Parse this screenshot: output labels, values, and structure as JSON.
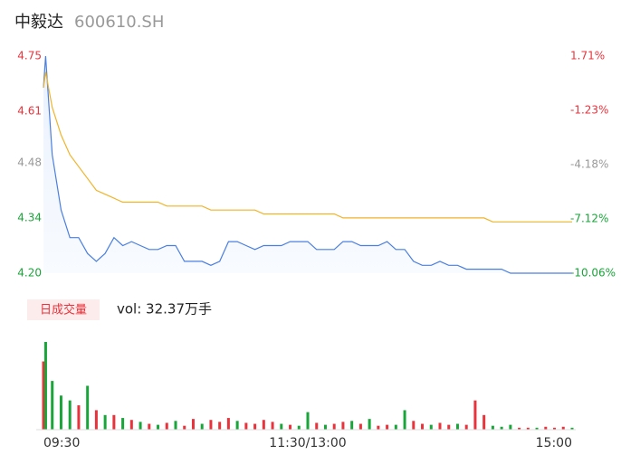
{
  "chart_data": {
    "type": "line",
    "title": "中毅达",
    "subtitle": "600610.SH",
    "x": [
      0,
      1,
      4,
      8,
      12,
      16,
      20,
      24,
      28,
      32,
      36,
      40,
      44,
      48,
      52,
      56,
      60,
      64,
      68,
      72,
      76,
      80,
      84,
      88,
      92,
      96,
      100,
      104,
      108,
      112,
      116,
      120,
      124,
      128,
      132,
      136,
      140,
      144,
      148,
      152,
      156,
      160,
      164,
      168,
      172,
      176,
      180,
      184,
      188,
      192,
      196,
      200,
      204,
      208,
      212,
      216,
      220,
      224,
      228,
      232,
      236,
      240
    ],
    "xlim": [
      0,
      240
    ],
    "xticks": [
      {
        "value": 0,
        "label": "09:30"
      },
      {
        "value": 120,
        "label": "11:30/13:00"
      },
      {
        "value": 240,
        "label": "15:00"
      }
    ],
    "ylim": [
      4.2,
      4.75
    ],
    "yticks": [
      4.75,
      4.61,
      4.48,
      4.34,
      {
        "value": 4.2,
        "label": "4.20"
      }
    ],
    "ytick_colors": [
      "#e8333c",
      "#e8333c",
      "#999999",
      "#1aa53a",
      "#1aa53a"
    ],
    "y2lim": [
      -10.06,
      1.71
    ],
    "y2ticks": [
      {
        "value": 1.71,
        "label": "1.71%"
      },
      {
        "value": -1.23,
        "label": "-1.23%"
      },
      {
        "value": -4.18,
        "label": "-4.18%"
      },
      {
        "value": -7.12,
        "label": "-7.12%"
      },
      {
        "value": -10.06,
        "label": "-10.06%"
      }
    ],
    "y2tick_colors": [
      "#e8333c",
      "#e8333c",
      "#999999",
      "#1aa53a",
      "#1aa53a"
    ],
    "series": [
      {
        "color": "#4a7fe0",
        "values": [
          4.67,
          4.75,
          4.5,
          4.36,
          4.29,
          4.29,
          4.25,
          4.23,
          4.25,
          4.29,
          4.27,
          4.28,
          4.27,
          4.26,
          4.26,
          4.27,
          4.27,
          4.23,
          4.23,
          4.23,
          4.22,
          4.23,
          4.28,
          4.28,
          4.27,
          4.26,
          4.27,
          4.27,
          4.27,
          4.28,
          4.28,
          4.28,
          4.26,
          4.26,
          4.26,
          4.28,
          4.28,
          4.27,
          4.27,
          4.27,
          4.28,
          4.26,
          4.26,
          4.23,
          4.22,
          4.22,
          4.23,
          4.22,
          4.22,
          4.21,
          4.21,
          4.21,
          4.21,
          4.21,
          4.2,
          4.2,
          4.2,
          4.2,
          4.2,
          4.2,
          4.2,
          4.2
        ]
      },
      {
        "color": "#f0b429",
        "values": [
          4.67,
          4.71,
          4.62,
          4.55,
          4.5,
          4.47,
          4.44,
          4.41,
          4.4,
          4.39,
          4.38,
          4.38,
          4.38,
          4.38,
          4.38,
          4.37,
          4.37,
          4.37,
          4.37,
          4.37,
          4.36,
          4.36,
          4.36,
          4.36,
          4.36,
          4.36,
          4.35,
          4.35,
          4.35,
          4.35,
          4.35,
          4.35,
          4.35,
          4.35,
          4.35,
          4.34,
          4.34,
          4.34,
          4.34,
          4.34,
          4.34,
          4.34,
          4.34,
          4.34,
          4.34,
          4.34,
          4.34,
          4.34,
          4.34,
          4.34,
          4.34,
          4.34,
          4.33,
          4.33,
          4.33,
          4.33,
          4.33,
          4.33,
          4.33,
          4.33,
          4.33,
          4.33
        ]
      }
    ],
    "volume": {
      "title": "日成交量",
      "label": "vol: 32.37万手",
      "values": [
        7000,
        9000,
        5000,
        3500,
        3000,
        2500,
        4500,
        2000,
        1500,
        1500,
        1200,
        1000,
        800,
        600,
        500,
        700,
        900,
        400,
        1100,
        600,
        1000,
        800,
        1200,
        900,
        700,
        600,
        1000,
        800,
        600,
        500,
        400,
        1800,
        700,
        500,
        600,
        800,
        900,
        600,
        1100,
        400,
        500,
        500,
        2000,
        900,
        600,
        500,
        700,
        500,
        600,
        500,
        3000,
        1500,
        400,
        300,
        500,
        200,
        200,
        200,
        300,
        200,
        300,
        200
      ],
      "colors": [
        "#e8333c",
        "#1aa53a",
        "#1aa53a",
        "#1aa53a",
        "#1aa53a",
        "#e8333c",
        "#1aa53a",
        "#e8333c",
        "#1aa53a",
        "#e8333c",
        "#1aa53a",
        "#e8333c",
        "#1aa53a",
        "#e8333c",
        "#1aa53a",
        "#e8333c",
        "#1aa53a",
        "#e8333c",
        "#e8333c",
        "#1aa53a",
        "#e8333c",
        "#e8333c",
        "#e8333c",
        "#1aa53a",
        "#e8333c",
        "#e8333c",
        "#e8333c",
        "#e8333c",
        "#1aa53a",
        "#e8333c",
        "#1aa53a",
        "#1aa53a",
        "#e8333c",
        "#1aa53a",
        "#e8333c",
        "#e8333c",
        "#1aa53a",
        "#e8333c",
        "#1aa53a",
        "#e8333c",
        "#e8333c",
        "#1aa53a",
        "#1aa53a",
        "#e8333c",
        "#e8333c",
        "#1aa53a",
        "#e8333c",
        "#e8333c",
        "#1aa53a",
        "#e8333c",
        "#e8333c",
        "#e8333c",
        "#1aa53a",
        "#1aa53a",
        "#1aa53a",
        "#e8333c",
        "#e8333c",
        "#1aa53a",
        "#e8333c",
        "#e8333c",
        "#e8333c",
        "#1aa53a"
      ]
    }
  }
}
